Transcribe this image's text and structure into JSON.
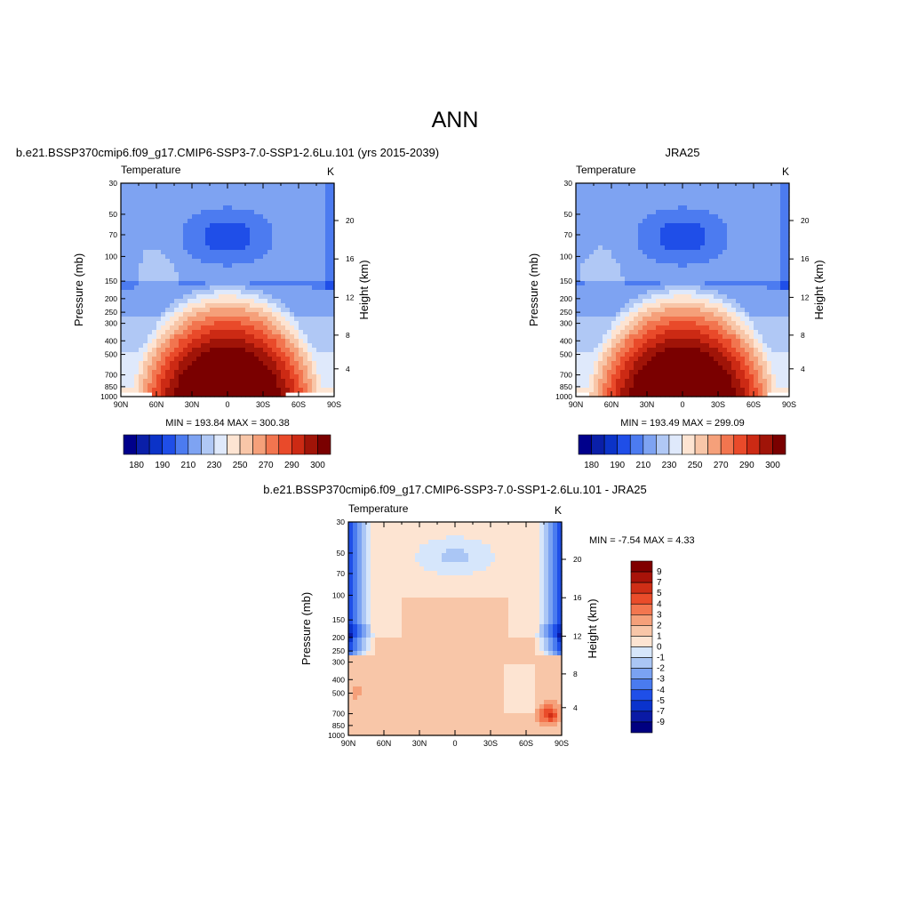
{
  "page": {
    "title": "ANN"
  },
  "colors": {
    "axis": "#000000",
    "temp_palette": [
      "#00008b",
      "#0a1fa8",
      "#0b33c8",
      "#1f4ee8",
      "#4c7bf0",
      "#7ea3f2",
      "#b0c8f5",
      "#dfe9fb",
      "#fde4d2",
      "#f8c6a8",
      "#f5a07a",
      "#f2754f",
      "#e94a2a",
      "#cc2a14",
      "#a01408",
      "#7a0000"
    ],
    "diff_palette": [
      "#000080",
      "#0a1aa5",
      "#0a33cc",
      "#1f4fe8",
      "#4a7bef",
      "#7aa2f2",
      "#aac6f5",
      "#d6e6fb",
      "#fde4d2",
      "#f8c6a8",
      "#f5a07a",
      "#f3764f",
      "#ea4c2a",
      "#cf2e16",
      "#a81309",
      "#800000"
    ]
  },
  "chart_data": [
    {
      "type": "heatmap",
      "title": "b.e21.BSSP370cmip6.f09_g17.CMIP6-SSP3-7.0-SSP1-2.6Lu.101 (yrs 2015-2039)",
      "subtitle_left": "Temperature",
      "subtitle_right": "K",
      "xlabel": "",
      "ylabel": "Pressure (mb)",
      "ylabel_right": "Height (km)",
      "x_ticks": [
        "90N",
        "60N",
        "30N",
        "0",
        "30S",
        "60S",
        "90S"
      ],
      "y_ticks": [
        "30",
        "50",
        "70",
        "100",
        "150",
        "200",
        "250",
        "300",
        "400",
        "500",
        "700",
        "850",
        "1000"
      ],
      "y_right_ticks": [
        "20",
        "16",
        "12",
        "8",
        "4"
      ],
      "stats": "MIN = 193.84  MAX = 300.38",
      "colorbar_labels": [
        "180",
        "190",
        "210",
        "230",
        "250",
        "270",
        "290",
        "300"
      ],
      "min": 193.84,
      "max": 300.38
    },
    {
      "type": "heatmap",
      "title": "JRA25",
      "subtitle_left": "Temperature",
      "subtitle_right": "K",
      "xlabel": "",
      "ylabel": "Pressure (mb)",
      "ylabel_right": "Height (km)",
      "x_ticks": [
        "90N",
        "60N",
        "30N",
        "0",
        "30S",
        "60S",
        "90S"
      ],
      "y_ticks": [
        "30",
        "50",
        "70",
        "100",
        "150",
        "200",
        "250",
        "300",
        "400",
        "500",
        "700",
        "850",
        "1000"
      ],
      "y_right_ticks": [
        "20",
        "16",
        "12",
        "8",
        "4"
      ],
      "stats": "MIN = 193.49  MAX = 299.09",
      "colorbar_labels": [
        "180",
        "190",
        "210",
        "230",
        "250",
        "270",
        "290",
        "300"
      ],
      "min": 193.49,
      "max": 299.09
    },
    {
      "type": "heatmap",
      "title": "b.e21.BSSP370cmip6.f09_g17.CMIP6-SSP3-7.0-SSP1-2.6Lu.101 - JRA25",
      "subtitle_left": "Temperature",
      "subtitle_right": "K",
      "xlabel": "",
      "ylabel": "Pressure (mb)",
      "ylabel_right": "Height (km)",
      "x_ticks": [
        "90N",
        "60N",
        "30N",
        "0",
        "30S",
        "60S",
        "90S"
      ],
      "y_ticks": [
        "30",
        "50",
        "70",
        "100",
        "150",
        "200",
        "250",
        "300",
        "400",
        "500",
        "700",
        "850",
        "1000"
      ],
      "y_right_ticks": [
        "20",
        "16",
        "12",
        "8",
        "4"
      ],
      "stats": "MIN =  -7.54  MAX =   4.33",
      "colorbar_labels": [
        "9",
        "7",
        "5",
        "4",
        "3",
        "2",
        "1",
        "0",
        "-1",
        "-2",
        "-3",
        "-4",
        "-5",
        "-7",
        "-9"
      ],
      "min": -7.54,
      "max": 4.33
    }
  ]
}
